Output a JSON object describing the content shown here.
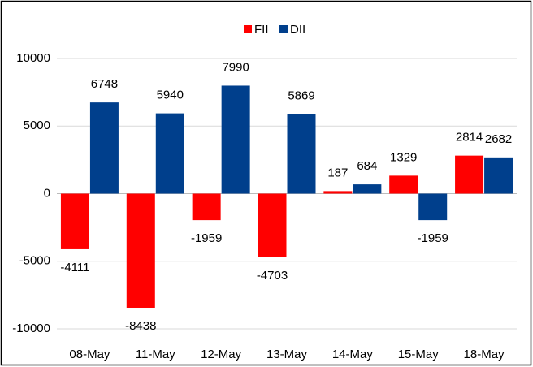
{
  "chart_data": {
    "type": "bar",
    "categories": [
      "08-May",
      "11-May",
      "12-May",
      "13-May",
      "14-May",
      "15-May",
      "18-May"
    ],
    "series": [
      {
        "name": "FII",
        "color": "#ff0000",
        "values": [
          -4111,
          -8438,
          -1959,
          -4703,
          187,
          1329,
          2814
        ]
      },
      {
        "name": "DII",
        "color": "#003f8c",
        "values": [
          6748,
          5940,
          7990,
          5869,
          684,
          -1959,
          2682
        ]
      }
    ],
    "ylim": [
      -10000,
      10000
    ],
    "yticks": [
      -10000,
      -5000,
      0,
      5000,
      10000
    ],
    "grid": true,
    "legend": "top"
  }
}
